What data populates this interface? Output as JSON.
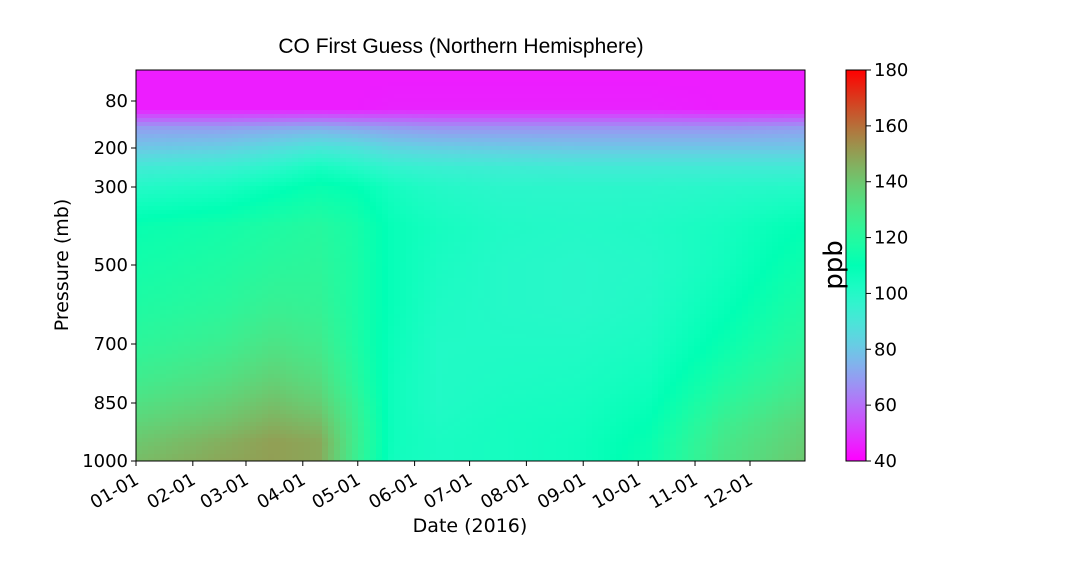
{
  "chart_data": {
    "type": "heatmap",
    "title": "CO First Guess (Northern Hemisphere)",
    "xlabel": "Date (2016)",
    "ylabel": "Pressure (mb)",
    "x_tick_labels": [
      "01-01",
      "02-01",
      "03-01",
      "04-01",
      "05-01",
      "06-01",
      "07-01",
      "08-01",
      "09-01",
      "10-01",
      "11-01",
      "12-01"
    ],
    "x_tick_days": [
      0,
      31,
      60,
      91,
      121,
      152,
      182,
      213,
      244,
      274,
      305,
      335
    ],
    "x_range_days": [
      0,
      365
    ],
    "y_tick_labels": [
      "80",
      "200",
      "300",
      "500",
      "700",
      "850",
      "1000"
    ],
    "y_tick_values": [
      80,
      200,
      300,
      500,
      700,
      850,
      1000
    ],
    "y_range": [
      1000,
      0
    ],
    "colorbar": {
      "label": "ppb",
      "colormap": "rainbow",
      "range": [
        40,
        180
      ],
      "tick_labels": [
        "40",
        "60",
        "80",
        "100",
        "120",
        "140",
        "160",
        "180"
      ],
      "tick_values": [
        40,
        60,
        80,
        100,
        120,
        140,
        160,
        180
      ]
    },
    "grid": false,
    "pressure_levels": [
      30,
      100,
      150,
      200,
      250,
      300,
      400,
      500,
      600,
      700,
      800,
      850,
      900,
      950,
      1000
    ],
    "profiles": [
      {
        "day": 0,
        "values": [
          45,
          45,
          70,
          80,
          92,
          100,
          112,
          115,
          118,
          122,
          128,
          132,
          136,
          140,
          143
        ]
      },
      {
        "day": 45,
        "values": [
          45,
          45,
          70,
          82,
          94,
          103,
          115,
          118,
          121,
          126,
          133,
          137,
          141,
          146,
          148
        ]
      },
      {
        "day": 75,
        "values": [
          45,
          45,
          72,
          86,
          98,
          108,
          118,
          121,
          125,
          131,
          138,
          142,
          146,
          150,
          150
        ]
      },
      {
        "day": 100,
        "values": [
          45,
          45,
          74,
          90,
          104,
          112,
          120,
          122,
          124,
          128,
          134,
          138,
          143,
          148,
          148
        ]
      },
      {
        "day": 120,
        "values": [
          45,
          45,
          72,
          88,
          100,
          110,
          116,
          117,
          117,
          118,
          121,
          124,
          126,
          127,
          126
        ]
      },
      {
        "day": 140,
        "values": [
          45,
          46,
          70,
          84,
          96,
          104,
          108,
          108,
          108,
          107,
          106,
          106,
          106,
          106,
          105
        ]
      },
      {
        "day": 165,
        "values": [
          45,
          46,
          68,
          82,
          94,
          100,
          104,
          103,
          102,
          101,
          101,
          101,
          102,
          103,
          103
        ]
      },
      {
        "day": 200,
        "values": [
          45,
          46,
          68,
          81,
          93,
          98,
          101,
          100,
          100,
          101,
          102,
          103,
          104,
          104,
          104
        ]
      },
      {
        "day": 240,
        "values": [
          45,
          46,
          68,
          80,
          92,
          98,
          100,
          99,
          99,
          101,
          103,
          104,
          105,
          106,
          106
        ]
      },
      {
        "day": 280,
        "values": [
          45,
          46,
          68,
          80,
          92,
          98,
          101,
          100,
          101,
          103,
          106,
          108,
          110,
          112,
          113
        ]
      },
      {
        "day": 320,
        "values": [
          45,
          45,
          68,
          80,
          92,
          99,
          104,
          105,
          108,
          112,
          118,
          122,
          126,
          129,
          130
        ]
      },
      {
        "day": 365,
        "values": [
          45,
          45,
          70,
          80,
          92,
          100,
          110,
          114,
          118,
          122,
          128,
          132,
          136,
          138,
          140
        ]
      }
    ]
  }
}
